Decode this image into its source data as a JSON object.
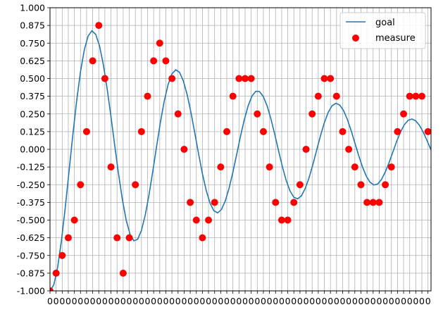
{
  "chart_data": {
    "type": "line",
    "xlim": [
      0,
      5
    ],
    "ylim": [
      -1.0,
      1.0
    ],
    "x_ticks_step": 0.08,
    "y_ticks": [
      -1.0,
      -0.875,
      -0.75,
      -0.625,
      -0.5,
      -0.375,
      -0.25,
      -0.125,
      0.0,
      0.125,
      0.25,
      0.375,
      0.5,
      0.625,
      0.75,
      0.875,
      1.0
    ],
    "y_tick_labels": [
      "-1.000",
      "-0.875",
      "-0.750",
      "-0.625",
      "-0.500",
      "-0.375",
      "-0.250",
      "-0.125",
      "0.000",
      "0.125",
      "0.250",
      "0.375",
      "0.500",
      "0.625",
      "0.750",
      "0.875",
      "1.000"
    ],
    "x_tick_labels_visible": [
      "0",
      "0",
      "0",
      "0",
      "0",
      "0",
      "0",
      "0",
      "0",
      "0",
      "0",
      "0",
      "0",
      "0",
      "0",
      "0",
      "0",
      "0",
      "0",
      "0",
      "0",
      "0",
      "0",
      "0",
      "0",
      "0",
      "0",
      "0",
      "0",
      "0",
      "0",
      "0",
      "0",
      "0",
      "0",
      "0",
      "0",
      "0",
      "0",
      "0",
      "0",
      "0",
      "0",
      "0",
      "0",
      "0",
      "0",
      "0",
      "0",
      "0",
      "0",
      "0",
      "0",
      "0",
      "0",
      "0",
      "0",
      "0",
      "0",
      "0",
      "0",
      "0",
      "0"
    ],
    "grid": true,
    "legend_position": "top-right",
    "series": [
      {
        "name": "goal",
        "style": "line",
        "color": "#1f77b4",
        "x": [
          0.0,
          0.05,
          0.1,
          0.15,
          0.2,
          0.25,
          0.3,
          0.35,
          0.4,
          0.45,
          0.5,
          0.55,
          0.6,
          0.65,
          0.7,
          0.75,
          0.8,
          0.85,
          0.9,
          0.95,
          1.0,
          1.05,
          1.1,
          1.15,
          1.2,
          1.25,
          1.3,
          1.35,
          1.4,
          1.45,
          1.5,
          1.55,
          1.6,
          1.65,
          1.7,
          1.75,
          1.8,
          1.85,
          1.9,
          1.95,
          2.0,
          2.05,
          2.1,
          2.15,
          2.2,
          2.25,
          2.3,
          2.35,
          2.4,
          2.45,
          2.5,
          2.55,
          2.6,
          2.65,
          2.7,
          2.75,
          2.8,
          2.85,
          2.9,
          2.95,
          3.0,
          3.05,
          3.1,
          3.15,
          3.2,
          3.25,
          3.3,
          3.35,
          3.4,
          3.45,
          3.5,
          3.55,
          3.6,
          3.65,
          3.7,
          3.75,
          3.8,
          3.85,
          3.9,
          3.95,
          4.0,
          4.05,
          4.1,
          4.15,
          4.2,
          4.25,
          4.3,
          4.35,
          4.4,
          4.45,
          4.5,
          4.55,
          4.6,
          4.65,
          4.7,
          4.75,
          4.8,
          4.85,
          4.9,
          4.95,
          5.0
        ],
        "y": [
          -1.0,
          -0.957,
          -0.834,
          -0.646,
          -0.412,
          -0.154,
          0.104,
          0.343,
          0.547,
          0.702,
          0.8,
          0.837,
          0.812,
          0.73,
          0.598,
          0.427,
          0.231,
          0.024,
          -0.176,
          -0.356,
          -0.501,
          -0.6,
          -0.646,
          -0.636,
          -0.573,
          -0.464,
          -0.319,
          -0.151,
          0.025,
          0.195,
          0.343,
          0.458,
          0.533,
          0.562,
          0.544,
          0.483,
          0.385,
          0.259,
          0.115,
          -0.033,
          -0.172,
          -0.291,
          -0.38,
          -0.434,
          -0.449,
          -0.425,
          -0.365,
          -0.275,
          -0.161,
          -0.035,
          0.093,
          0.21,
          0.307,
          0.376,
          0.41,
          0.408,
          0.372,
          0.305,
          0.213,
          0.104,
          -0.012,
          -0.124,
          -0.221,
          -0.295,
          -0.339,
          -0.35,
          -0.328,
          -0.276,
          -0.2,
          -0.106,
          -0.004,
          0.097,
          0.188,
          0.26,
          0.307,
          0.325,
          0.314,
          0.276,
          0.214,
          0.135,
          0.046,
          -0.043,
          -0.124,
          -0.189,
          -0.233,
          -0.252,
          -0.245,
          -0.213,
          -0.16,
          -0.093,
          -0.018,
          0.057,
          0.123,
          0.174,
          0.205,
          0.214,
          0.201,
          0.168,
          0.119,
          0.059,
          -0.004
        ]
      },
      {
        "name": "measure",
        "style": "scatter",
        "color": "#ff0000",
        "x": [
          0.0,
          0.08,
          0.16,
          0.24,
          0.32,
          0.4,
          0.48,
          0.56,
          0.64,
          0.72,
          0.8,
          0.88,
          0.96,
          1.04,
          1.12,
          1.2,
          1.28,
          1.36,
          1.44,
          1.52,
          1.6,
          1.68,
          1.76,
          1.84,
          1.92,
          2.0,
          2.08,
          2.16,
          2.24,
          2.32,
          2.4,
          2.48,
          2.56,
          2.64,
          2.72,
          2.8,
          2.88,
          2.96,
          3.04,
          3.12,
          3.2,
          3.28,
          3.36,
          3.44,
          3.52,
          3.6,
          3.68,
          3.76,
          3.84,
          3.92,
          4.0,
          4.08,
          4.16,
          4.24,
          4.32,
          4.4,
          4.48,
          4.56,
          4.64,
          4.72,
          4.8,
          4.88,
          4.96
        ],
        "y": [
          -1.0,
          -0.875,
          -0.75,
          -0.625,
          -0.5,
          -0.25,
          0.125,
          0.625,
          0.875,
          0.5,
          -0.125,
          -0.625,
          -0.875,
          -0.625,
          -0.25,
          0.125,
          0.375,
          0.625,
          0.75,
          0.625,
          0.5,
          0.25,
          0.0,
          -0.375,
          -0.5,
          -0.625,
          -0.5,
          -0.375,
          -0.125,
          0.125,
          0.375,
          0.5,
          0.5,
          0.5,
          0.25,
          0.125,
          -0.125,
          -0.375,
          -0.5,
          -0.5,
          -0.375,
          -0.25,
          0.0,
          0.25,
          0.375,
          0.5,
          0.5,
          0.375,
          0.125,
          0.0,
          -0.125,
          -0.25,
          -0.375,
          -0.375,
          -0.375,
          -0.25,
          -0.125,
          0.125,
          0.25,
          0.375,
          0.375,
          0.375,
          0.125
        ]
      }
    ]
  }
}
